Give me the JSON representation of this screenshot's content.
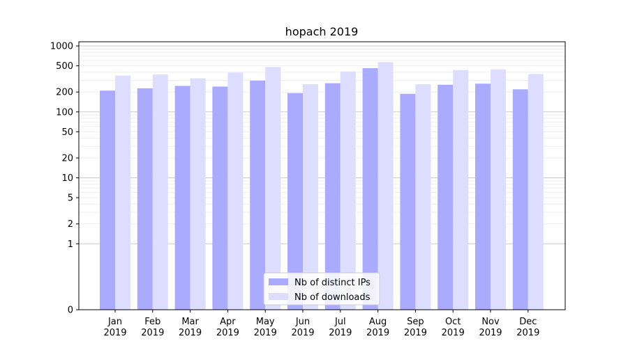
{
  "chart_data": {
    "type": "bar",
    "title": "hopach 2019",
    "xlabel": "",
    "ylabel": "",
    "yscale": "symlog",
    "ylim": [
      0,
      1000
    ],
    "grid": true,
    "legend_position": "bottom-center",
    "categories": [
      [
        "Jan",
        "2019"
      ],
      [
        "Feb",
        "2019"
      ],
      [
        "Mar",
        "2019"
      ],
      [
        "Apr",
        "2019"
      ],
      [
        "May",
        "2019"
      ],
      [
        "Jun",
        "2019"
      ],
      [
        "Jul",
        "2019"
      ],
      [
        "Aug",
        "2019"
      ],
      [
        "Sep",
        "2019"
      ],
      [
        "Oct",
        "2019"
      ],
      [
        "Nov",
        "2019"
      ],
      [
        "Dec",
        "2019"
      ]
    ],
    "y_ticks": [
      0,
      1,
      2,
      5,
      10,
      20,
      50,
      100,
      200,
      500,
      1000
    ],
    "y_tick_labels": [
      "0",
      "1",
      "2",
      "5",
      "10",
      "20",
      "50",
      "100",
      "200",
      "500",
      "1000"
    ],
    "series": [
      {
        "name": "Nb of distinct IPs",
        "color": "#aaaaff",
        "values": [
          210,
          228,
          248,
          242,
          298,
          193,
          272,
          460,
          188,
          258,
          268,
          220
        ]
      },
      {
        "name": "Nb of downloads",
        "color": "#ddddff",
        "values": [
          355,
          368,
          322,
          395,
          478,
          262,
          410,
          568,
          262,
          430,
          440,
          375
        ]
      }
    ]
  }
}
